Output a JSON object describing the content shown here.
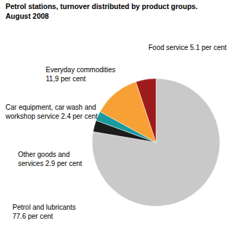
{
  "chart_data": {
    "type": "pie",
    "title": "Petrol stations, turnover distributed by product groups.",
    "subtitle": "August 2008",
    "categories": [
      "Petrol and lubricants",
      "Other goods and services",
      "Car equipment, car wash and workshop service",
      "Everyday commodities",
      "Food service"
    ],
    "values": [
      77.6,
      2.9,
      2.4,
      11.9,
      5.1
    ],
    "value_labels": [
      "77.6 per cent",
      "2.9 per cent",
      "2.4 per cent",
      "11,9 per cent",
      "5.1 per cent"
    ],
    "colors": [
      "#c9c9c9",
      "#1c1c1c",
      "#1b9aa0",
      "#f7a035",
      "#9e1b1b"
    ],
    "data_labels": true
  }
}
